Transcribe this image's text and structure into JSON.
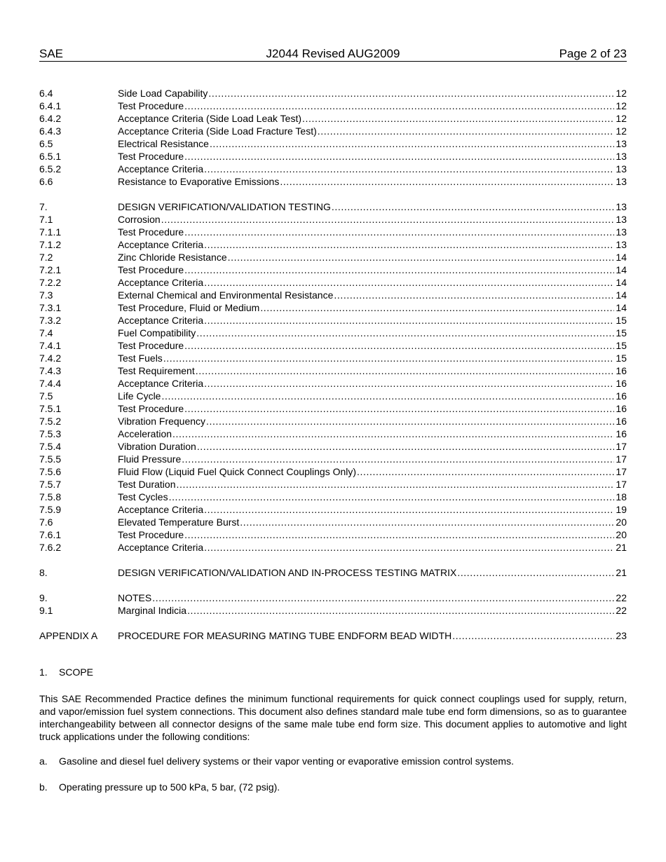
{
  "header": {
    "left": "SAE",
    "center": "J2044 Revised AUG2009",
    "right": "Page 2 of 23"
  },
  "toc": [
    [
      {
        "num": "6.4",
        "title": "Side Load Capability",
        "page": "12"
      },
      {
        "num": "6.4.1",
        "title": "Test Procedure",
        "page": "12"
      },
      {
        "num": "6.4.2",
        "title": "Acceptance Criteria (Side Load Leak Test)",
        "page": "12"
      },
      {
        "num": "6.4.3",
        "title": "Acceptance Criteria (Side Load Fracture Test)",
        "page": "12"
      },
      {
        "num": "6.5",
        "title": "Electrical Resistance",
        "page": "13"
      },
      {
        "num": "6.5.1",
        "title": "Test Procedure",
        "page": "13"
      },
      {
        "num": "6.5.2",
        "title": "Acceptance Criteria",
        "page": "13"
      },
      {
        "num": "6.6",
        "title": "Resistance to Evaporative Emissions",
        "page": "13"
      }
    ],
    [
      {
        "num": "7.",
        "title": "DESIGN VERIFICATION/VALIDATION TESTING",
        "page": "13"
      },
      {
        "num": "7.1",
        "title": "Corrosion",
        "page": "13"
      },
      {
        "num": "7.1.1",
        "title": "Test Procedure",
        "page": "13"
      },
      {
        "num": "7.1.2",
        "title": "Acceptance Criteria",
        "page": "13"
      },
      {
        "num": "7.2",
        "title": "Zinc Chloride Resistance",
        "page": "14"
      },
      {
        "num": "7.2.1",
        "title": "Test Procedure",
        "page": "14"
      },
      {
        "num": "7.2.2",
        "title": "Acceptance Criteria",
        "page": "14"
      },
      {
        "num": "7.3",
        "title": "External Chemical and Environmental Resistance",
        "page": "14"
      },
      {
        "num": "7.3.1",
        "title": "Test Procedure, Fluid or Medium",
        "page": "14"
      },
      {
        "num": "7.3.2",
        "title": "Acceptance Criteria",
        "page": "15"
      },
      {
        "num": "7.4",
        "title": "Fuel Compatibility",
        "page": "15"
      },
      {
        "num": "7.4.1",
        "title": "Test Procedure",
        "page": "15"
      },
      {
        "num": "7.4.2",
        "title": "Test Fuels",
        "page": "15"
      },
      {
        "num": "7.4.3",
        "title": "Test Requirement",
        "page": "16"
      },
      {
        "num": "7.4.4",
        "title": "Acceptance Criteria",
        "page": "16"
      },
      {
        "num": "7.5",
        "title": "Life Cycle",
        "page": "16"
      },
      {
        "num": "7.5.1",
        "title": "Test Procedure",
        "page": "16"
      },
      {
        "num": "7.5.2",
        "title": "Vibration Frequency",
        "page": "16"
      },
      {
        "num": "7.5.3",
        "title": "Acceleration",
        "page": "16"
      },
      {
        "num": "7.5.4",
        "title": "Vibration Duration",
        "page": "17"
      },
      {
        "num": "7.5.5",
        "title": "Fluid Pressure",
        "page": "17"
      },
      {
        "num": "7.5.6",
        "title": "Fluid Flow (Liquid Fuel Quick Connect Couplings Only)",
        "page": "17"
      },
      {
        "num": "7.5.7",
        "title": "Test Duration",
        "page": "17"
      },
      {
        "num": "7.5.8",
        "title": "Test Cycles",
        "page": "18"
      },
      {
        "num": "7.5.9",
        "title": "Acceptance Criteria",
        "page": "19"
      },
      {
        "num": "7.6",
        "title": "Elevated Temperature Burst",
        "page": "20"
      },
      {
        "num": "7.6.1",
        "title": "Test Procedure",
        "page": "20"
      },
      {
        "num": "7.6.2",
        "title": "Acceptance Criteria",
        "page": "21"
      }
    ],
    [
      {
        "num": "8.",
        "title": "DESIGN VERIFICATION/VALIDATION AND IN-PROCESS TESTING MATRIX",
        "page": "21"
      }
    ],
    [
      {
        "num": "9.",
        "title": "NOTES",
        "page": "22"
      },
      {
        "num": "9.1",
        "title": "Marginal Indicia",
        "page": "22"
      }
    ],
    [
      {
        "num": "APPENDIX A",
        "title": "PROCEDURE FOR MEASURING MATING TUBE ENDFORM BEAD WIDTH",
        "page": "23"
      }
    ]
  ],
  "scope": {
    "heading_num": "1.",
    "heading": "SCOPE",
    "paragraph": "This SAE Recommended Practice defines the minimum functional requirements for quick connect couplings used for supply, return, and vapor/emission fuel system connections. This document also defines standard male tube end form dimensions, so as to guarantee interchangeability between all connector designs of the same male tube end form size. This document applies to automotive and light truck applications under the following conditions:",
    "items": [
      {
        "label": "a.",
        "text": "Gasoline and diesel fuel delivery systems or their vapor venting or evaporative emission control systems."
      },
      {
        "label": "b.",
        "text": "Operating pressure up to 500 kPa, 5 bar, (72 psig)."
      }
    ]
  }
}
